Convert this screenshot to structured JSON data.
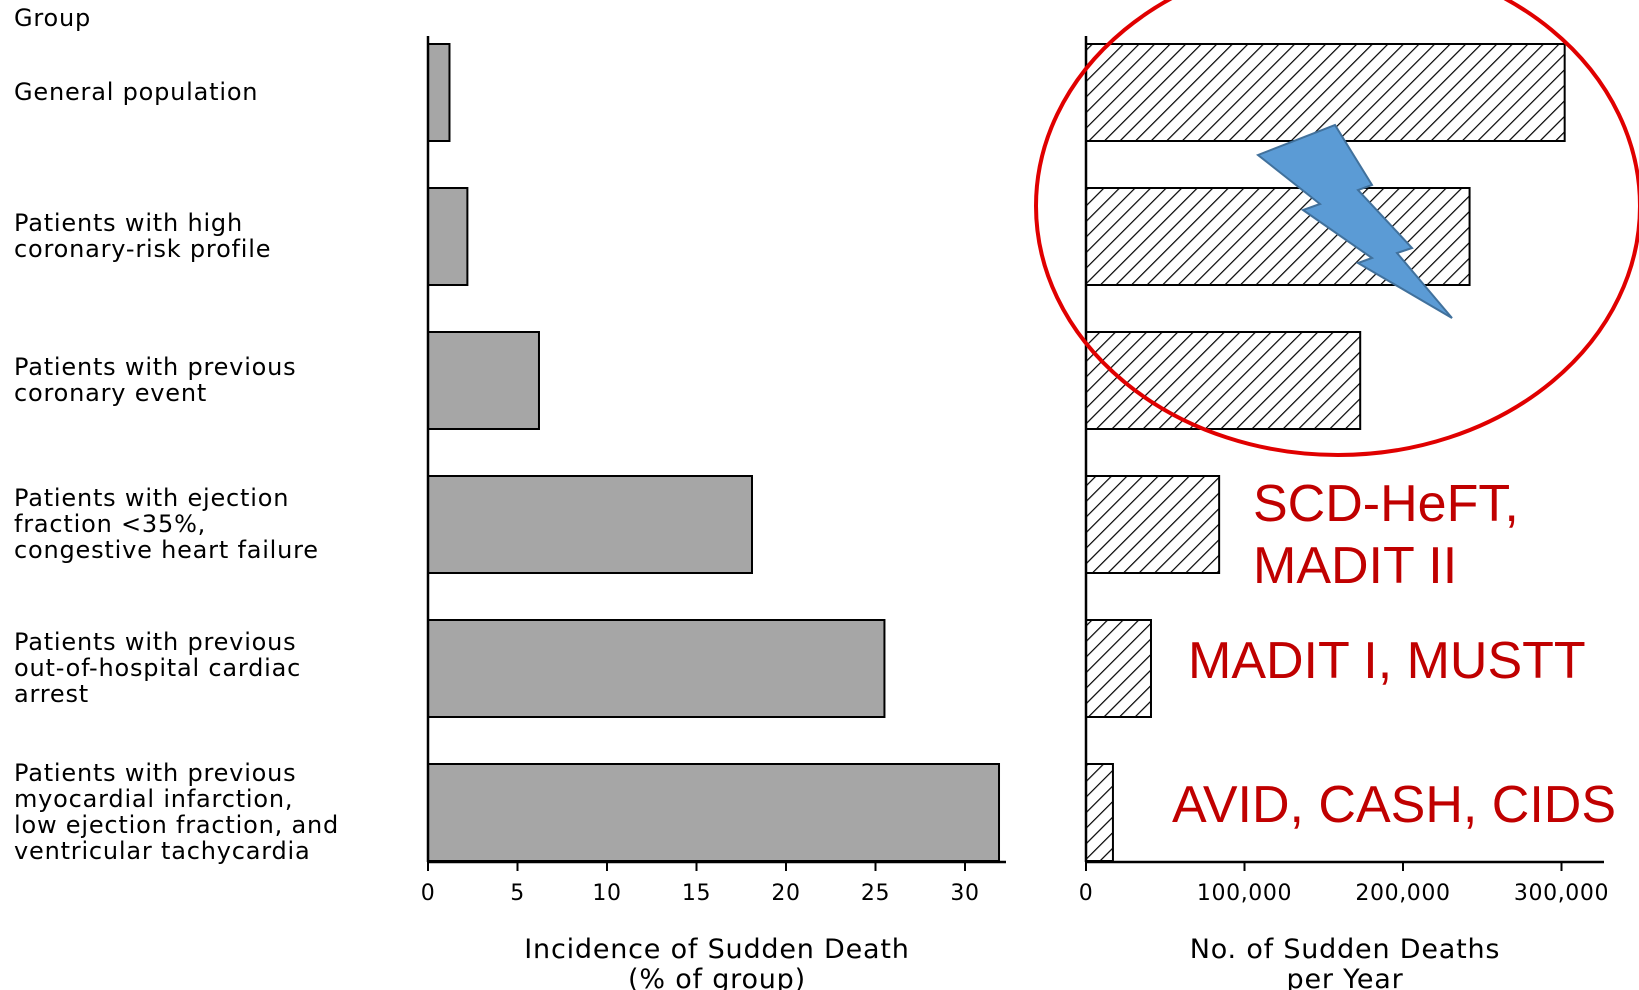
{
  "group_header": "Group",
  "groups": [
    [
      "General population"
    ],
    [
      "Patients with high",
      "coronary-risk profile"
    ],
    [
      "Patients with previous",
      "coronary event"
    ],
    [
      "Patients with ejection",
      "fraction <35%,",
      "congestive heart failure"
    ],
    [
      "Patients with previous",
      "out-of-hospital cardiac",
      "arrest"
    ],
    [
      "Patients with previous",
      "myocardial infarction,",
      "low ejection fraction, and",
      "ventricular tachycardia"
    ]
  ],
  "chart_data": [
    {
      "type": "bar",
      "orientation": "horizontal",
      "categories": [
        "General population",
        "Patients with high coronary-risk profile",
        "Patients with previous coronary event",
        "Patients with ejection fraction <35%, congestive heart failure",
        "Patients with previous out-of-hospital cardiac arrest",
        "Patients with previous myocardial infarction, low ejection fraction, and ventricular tachycardia"
      ],
      "values": [
        1.2,
        2.2,
        6.2,
        18.1,
        25.5,
        31.9
      ],
      "xlabel": [
        "Incidence of Sudden Death",
        "(% of group)"
      ],
      "xlim": [
        0,
        32
      ],
      "xticks": [
        0,
        5,
        10,
        15,
        20,
        25,
        30
      ],
      "xtick_labels": [
        "0",
        "5",
        "10",
        "15",
        "20",
        "25",
        "30"
      ],
      "fill": "#a6a6a6"
    },
    {
      "type": "bar",
      "orientation": "horizontal",
      "categories": [
        "General population",
        "Patients with high coronary-risk profile",
        "Patients with previous coronary event",
        "Patients with ejection fraction <35%, congestive heart failure",
        "Patients with previous out-of-hospital cardiac arrest",
        "Patients with previous myocardial infarction, low ejection fraction, and ventricular tachycardia"
      ],
      "values": [
        302000,
        242000,
        173000,
        84000,
        41000,
        17000
      ],
      "xlabel": [
        "No. of Sudden Deaths",
        "per Year"
      ],
      "xlim": [
        0,
        320000
      ],
      "xticks": [
        0,
        100000,
        200000,
        300000
      ],
      "xtick_labels": [
        "0",
        "100,000",
        "200,000",
        "300,000"
      ],
      "fill": "hatched"
    }
  ],
  "annotations": [
    {
      "row": 3,
      "lines": [
        "SCD-HeFT,",
        "MADIT II"
      ]
    },
    {
      "row": 4,
      "lines": [
        "MADIT I, MUSTT"
      ]
    },
    {
      "row": 5,
      "lines": [
        "AVID, CASH, CIDS"
      ]
    }
  ],
  "colors": {
    "annotation_text": "#c00000",
    "highlight_ellipse": "#e00000",
    "lightning_fill": "#5b9bd5",
    "lightning_stroke": "#41719c"
  },
  "overlays": [
    "highlight-ellipse",
    "lightning-bolt-icon"
  ]
}
